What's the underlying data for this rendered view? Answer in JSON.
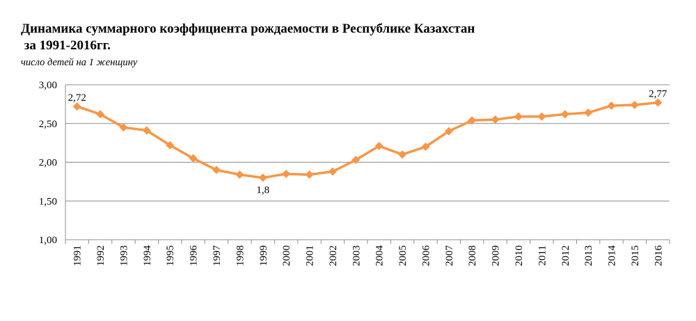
{
  "chart_data": {
    "type": "line",
    "title_line1": "Динамика суммарного коэффициента  рождаемости в Республике Казахстан",
    "title_line2": " за 1991-2016гг.",
    "subtitle": "число детей на 1 женщину",
    "categories": [
      "1991",
      "1992",
      "1993",
      "1994",
      "1995",
      "1996",
      "1997",
      "1998",
      "1999",
      "2000",
      "2001",
      "2002",
      "2003",
      "2004",
      "2005",
      "2006",
      "2007",
      "2008",
      "2009",
      "2010",
      "2011",
      "2012",
      "2013",
      "2014",
      "2015",
      "2016"
    ],
    "series": [
      {
        "values": [
          2.72,
          2.62,
          2.45,
          2.41,
          2.22,
          2.05,
          1.9,
          1.84,
          1.8,
          1.85,
          1.84,
          1.88,
          2.03,
          2.21,
          2.1,
          2.2,
          2.4,
          2.54,
          2.55,
          2.59,
          2.59,
          2.62,
          2.64,
          2.73,
          2.74,
          2.77
        ],
        "color": "#F79646"
      }
    ],
    "ylim": [
      1.0,
      3.0
    ],
    "yticks": [
      "1,00",
      "1,50",
      "2,00",
      "2,50",
      "3,00"
    ],
    "ytick_values": [
      1.0,
      1.5,
      2.0,
      2.5,
      3.0
    ],
    "grid": true,
    "annotations": [
      {
        "index": 0,
        "text": "2,72",
        "position": "above"
      },
      {
        "index": 8,
        "text": "1,8",
        "position": "below"
      },
      {
        "index": 25,
        "text": "2,77",
        "position": "above"
      }
    ]
  }
}
